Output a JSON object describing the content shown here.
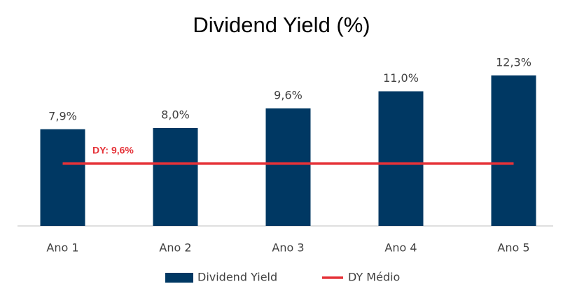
{
  "chart_data": {
    "type": "bar",
    "title": "Dividend Yield (%)",
    "categories": [
      "Ano 1",
      "Ano 2",
      "Ano 3",
      "Ano 4",
      "Ano 5"
    ],
    "series": [
      {
        "name": "Dividend Yield",
        "color": "#003863",
        "values": [
          7.9,
          8.0,
          9.6,
          11.0,
          12.3
        ],
        "value_labels": [
          "7,9%",
          "8,0%",
          "9,6%",
          "11,0%",
          "12,3%"
        ]
      },
      {
        "name": "DY Médio",
        "color": "#e53238",
        "type": "line",
        "axis": "y2",
        "values": [
          9.6,
          9.6,
          9.6,
          9.6,
          9.6
        ]
      }
    ],
    "annotations": [
      "DY: 9,6%"
    ],
    "ylim": [
      0,
      14
    ],
    "y2lim": [
      0,
      26.4
    ],
    "grid": false,
    "legend": "bottom"
  }
}
